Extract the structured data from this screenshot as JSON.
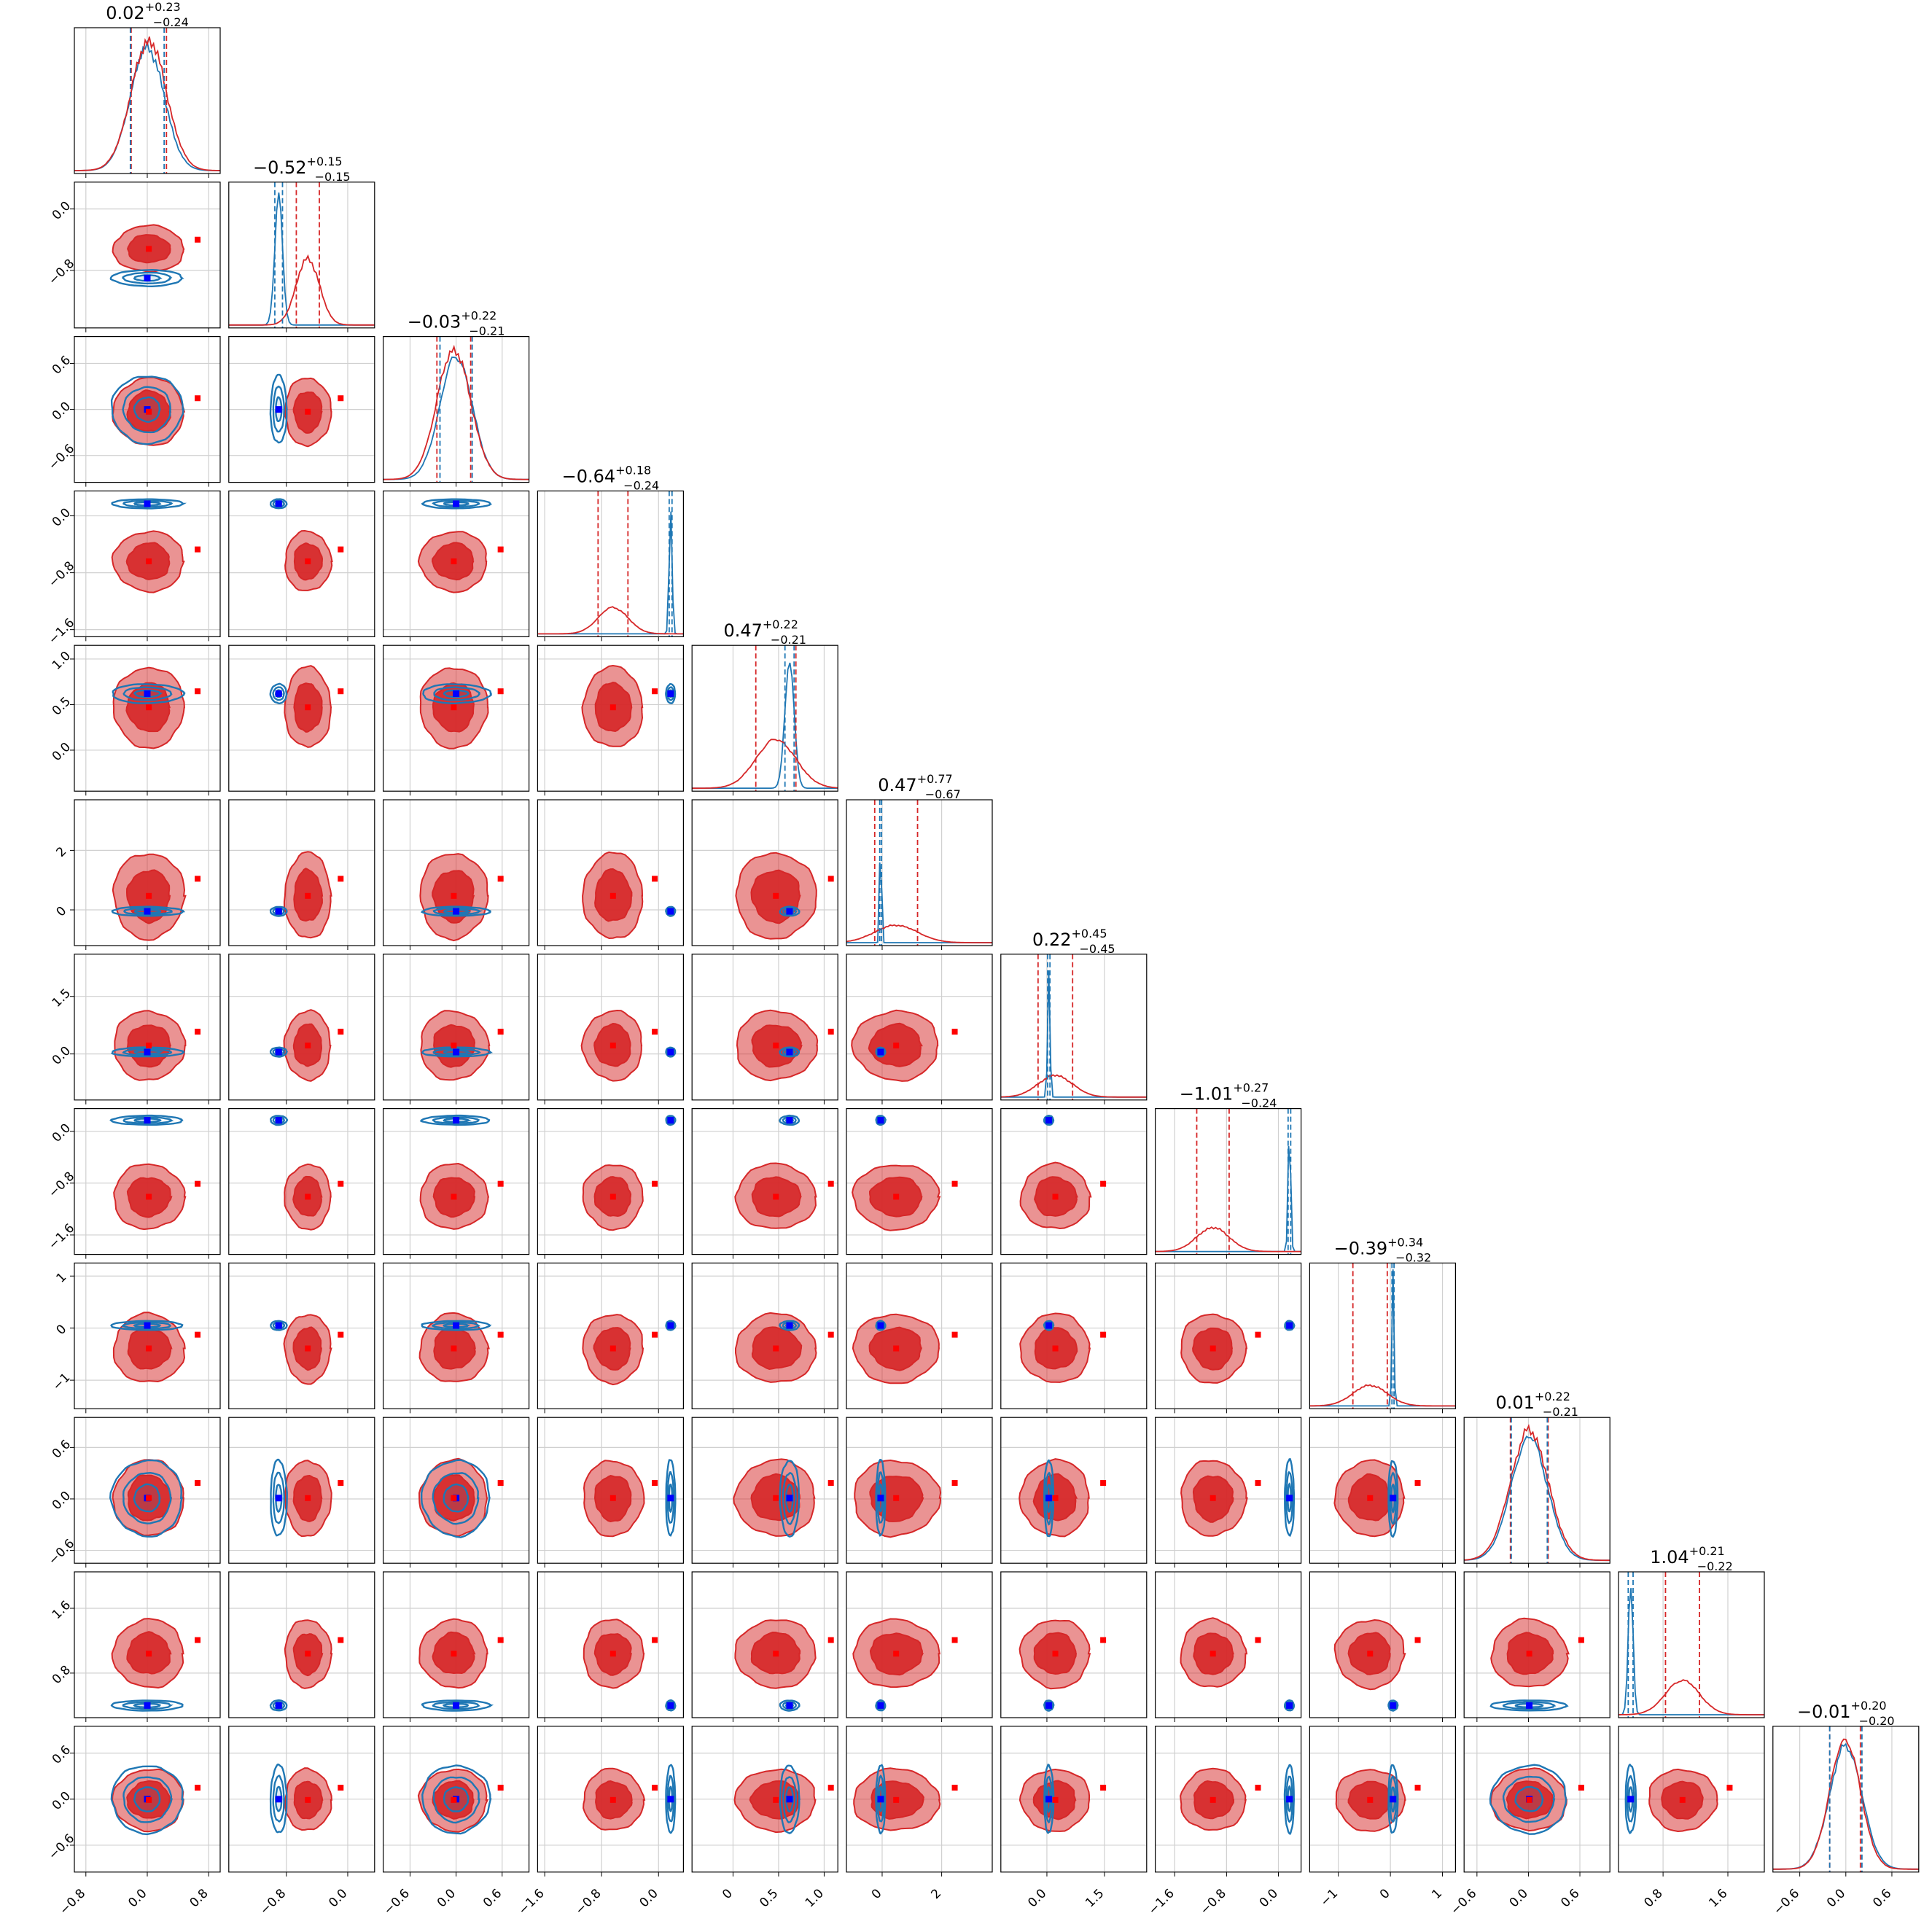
{
  "chart_data": {
    "type": "corner",
    "n_params": 12,
    "grid": true,
    "series": [
      {
        "color": "#1f77b4"
      },
      {
        "color": "#d62728"
      }
    ],
    "titles": [
      {
        "median": "0.02",
        "plus": "+0.23",
        "minus": "−0.24"
      },
      {
        "median": "−0.52",
        "plus": "+0.15",
        "minus": "−0.15"
      },
      {
        "median": "−0.03",
        "plus": "+0.22",
        "minus": "−0.21"
      },
      {
        "median": "−0.64",
        "plus": "+0.18",
        "minus": "−0.24"
      },
      {
        "median": "0.47",
        "plus": "+0.22",
        "minus": "−0.21"
      },
      {
        "median": "0.47",
        "plus": "+0.77",
        "minus": "−0.67"
      },
      {
        "median": "0.22",
        "plus": "+0.45",
        "minus": "−0.45"
      },
      {
        "median": "−1.01",
        "plus": "+0.27",
        "minus": "−0.24"
      },
      {
        "median": "−0.39",
        "plus": "+0.34",
        "minus": "−0.32"
      },
      {
        "median": "0.01",
        "plus": "+0.22",
        "minus": "−0.21"
      },
      {
        "median": "1.04",
        "plus": "+0.21",
        "minus": "−0.22"
      },
      {
        "median": "−0.01",
        "plus": "+0.20",
        "minus": "−0.20"
      }
    ],
    "ranges": [
      [
        -0.95,
        0.95
      ],
      [
        -1.55,
        0.35
      ],
      [
        -0.95,
        0.95
      ],
      [
        -1.7,
        0.35
      ],
      [
        -0.45,
        1.15
      ],
      [
        -1.2,
        3.7
      ],
      [
        -1.2,
        2.6
      ],
      [
        -1.9,
        0.35
      ],
      [
        -1.55,
        1.25
      ],
      [
        -0.75,
        0.95
      ],
      [
        0.25,
        2.05
      ],
      [
        -0.95,
        0.95
      ]
    ],
    "x_ticks": [
      [
        "−0.8",
        "0.0",
        "0.8"
      ],
      [
        "−0.8",
        "0.0"
      ],
      [
        "−0.6",
        "0.0",
        "0.6"
      ],
      [
        "−1.6",
        "−0.8",
        "0.0"
      ],
      [
        "0",
        "0.5",
        "1.0"
      ],
      [
        "0",
        "2"
      ],
      [
        "0.0",
        "1.5"
      ],
      [
        "−1.6",
        "−0.8",
        "0.0"
      ],
      [
        "−1",
        "0",
        "1"
      ],
      [
        "−0.6",
        "0.0",
        "0.6"
      ],
      [
        "0.8",
        "1.6"
      ],
      [
        "−0.6",
        "0.0",
        "0.6"
      ]
    ],
    "y_ticks": [
      [],
      [
        "0.0",
        "−0.8"
      ],
      [
        "0.6",
        "0.0",
        "−0.6"
      ],
      [
        "0.0",
        "−0.8",
        "−1.6"
      ],
      [
        "1.0",
        "0.5",
        "0.0"
      ],
      [
        "2",
        "0"
      ],
      [
        "1.5",
        "0.0"
      ],
      [
        "0.0",
        "−0.8",
        "−1.6"
      ],
      [
        "1",
        "0",
        "−1"
      ],
      [
        "0.6",
        "0.0",
        "−0.6"
      ],
      [
        "1.6",
        "0.8"
      ],
      [
        "0.6",
        "0.0",
        "−0.6"
      ]
    ],
    "red_posterior": [
      {
        "mean": 0.02,
        "sd": 0.23
      },
      {
        "mean": -0.52,
        "sd": 0.15
      },
      {
        "mean": -0.03,
        "sd": 0.22
      },
      {
        "mean": -0.64,
        "sd": 0.21
      },
      {
        "mean": 0.47,
        "sd": 0.22
      },
      {
        "mean": 0.47,
        "sd": 0.72
      },
      {
        "mean": 0.22,
        "sd": 0.45
      },
      {
        "mean": -1.01,
        "sd": 0.25
      },
      {
        "mean": -0.39,
        "sd": 0.33
      },
      {
        "mean": 0.01,
        "sd": 0.22
      },
      {
        "mean": 1.04,
        "sd": 0.21
      },
      {
        "mean": -0.01,
        "sd": 0.2
      }
    ],
    "blue_posterior": [
      {
        "mean": 0.0,
        "sd": 0.22
      },
      {
        "mean": -0.9,
        "sd": 0.05
      },
      {
        "mean": 0.0,
        "sd": 0.21
      },
      {
        "mean": 0.17,
        "sd": 0.02
      },
      {
        "mean": 0.62,
        "sd": 0.05
      },
      {
        "mean": -0.05,
        "sd": 0.03
      },
      {
        "mean": 0.05,
        "sd": 0.03
      },
      {
        "mean": 0.17,
        "sd": 0.02
      },
      {
        "mean": 0.05,
        "sd": 0.02
      },
      {
        "mean": 0.01,
        "sd": 0.21
      },
      {
        "mean": 0.4,
        "sd": 0.03
      },
      {
        "mean": 0.0,
        "sd": 0.21
      }
    ]
  }
}
